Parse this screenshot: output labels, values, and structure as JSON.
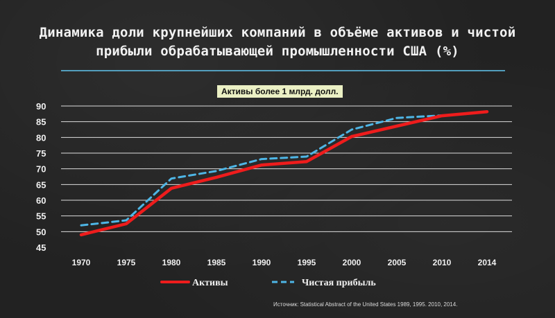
{
  "chart_data": {
    "type": "line",
    "title": "Динамика доли крупнейших компаний в объёме активов и чистой прибыли обрабатывающей промышленности США (%)",
    "subtitle": "Активы более 1 млрд. долл.",
    "categories": [
      "1970",
      "1975",
      "1980",
      "1985",
      "1990",
      "1995",
      "2000",
      "2005",
      "2010",
      "2014"
    ],
    "y_ticks": [
      "90",
      "85",
      "80",
      "75",
      "70",
      "65",
      "60",
      "55",
      "50",
      "45"
    ],
    "ylim": [
      45,
      90
    ],
    "grid": true,
    "legend_position": "bottom",
    "series": [
      {
        "name": "Активы",
        "color": "#ee1c1c",
        "style": "solid",
        "values": [
          49,
          52.5,
          63.8,
          67.3,
          71.2,
          72.3,
          80.3,
          83.6,
          86.9,
          88.2
        ]
      },
      {
        "name": "Чистая прибыль",
        "color": "#4eb6e6",
        "style": "dashed",
        "values": [
          52,
          53.6,
          66.9,
          69.3,
          73.1,
          73.9,
          82.5,
          86.2,
          87,
          null
        ]
      }
    ],
    "source": "Источник: Statistical Abstract of the United States 1989, 1995. 2010, 2014."
  }
}
